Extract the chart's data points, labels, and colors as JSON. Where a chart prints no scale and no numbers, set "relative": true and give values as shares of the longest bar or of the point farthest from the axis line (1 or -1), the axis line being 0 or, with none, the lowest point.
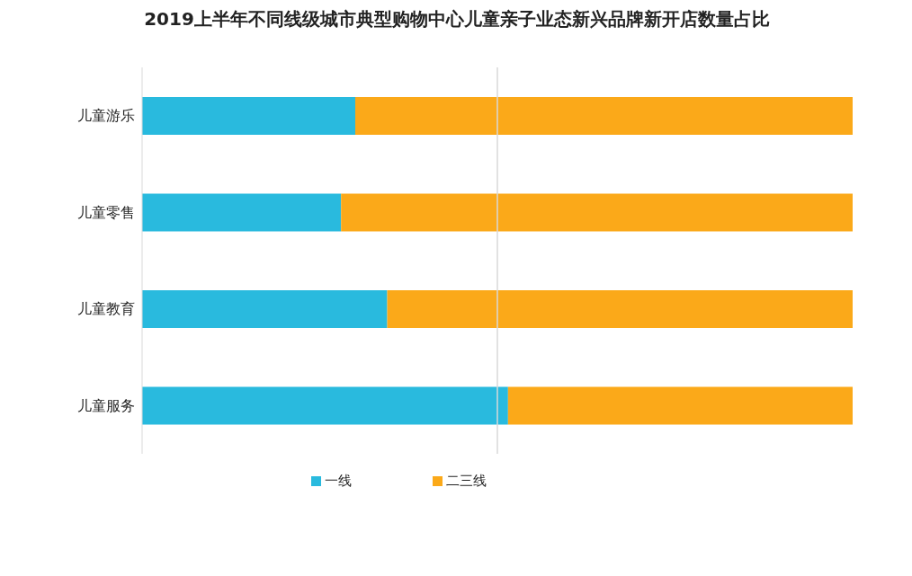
{
  "chart_data": {
    "type": "bar",
    "title": "2019上半年不同线级城市典型购物中心儿童亲子业态新兴品牌新开店数量占比",
    "orientation": "horizontal",
    "stacked": true,
    "relative": true,
    "categories": [
      "儿童游乐",
      "儿童零售",
      "儿童教育",
      "儿童服务"
    ],
    "series": [
      {
        "name": "一线",
        "color": "#29bade",
        "values": [
          0.3,
          0.28,
          0.345,
          0.515
        ]
      },
      {
        "name": "二三线",
        "color": "#fba919",
        "values": [
          0.7,
          0.72,
          0.655,
          0.485
        ]
      }
    ],
    "ref_lines": [
      {
        "axis": "x",
        "value": 0.5,
        "color": "#d9d9d9"
      }
    ],
    "legend": "bottom"
  }
}
